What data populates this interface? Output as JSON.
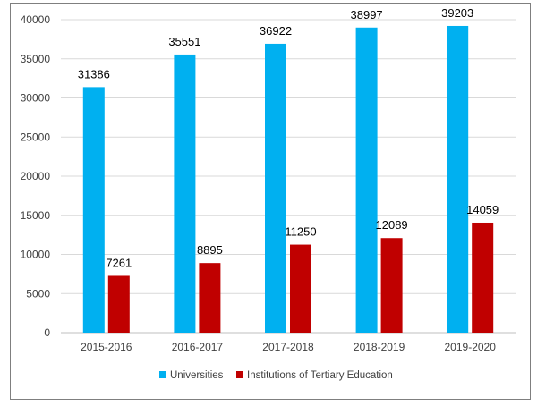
{
  "chart_data": {
    "type": "bar",
    "categories": [
      "2015-2016",
      "2016-2017",
      "2017-2018",
      "2018-2019",
      "2019-2020"
    ],
    "series": [
      {
        "name": "Universities",
        "values": [
          31386,
          35551,
          36922,
          38997,
          39203
        ],
        "color": "#00b0f0"
      },
      {
        "name": "Institutions of Tertiary Education",
        "values": [
          7261,
          8895,
          11250,
          12089,
          14059
        ],
        "color": "#c00000"
      }
    ],
    "ylim": [
      0,
      40000
    ],
    "yticks": [
      0,
      5000,
      10000,
      15000,
      20000,
      25000,
      30000,
      35000,
      40000
    ],
    "grid": true,
    "legend": "bottom",
    "title": "",
    "xlabel": "",
    "ylabel": ""
  }
}
